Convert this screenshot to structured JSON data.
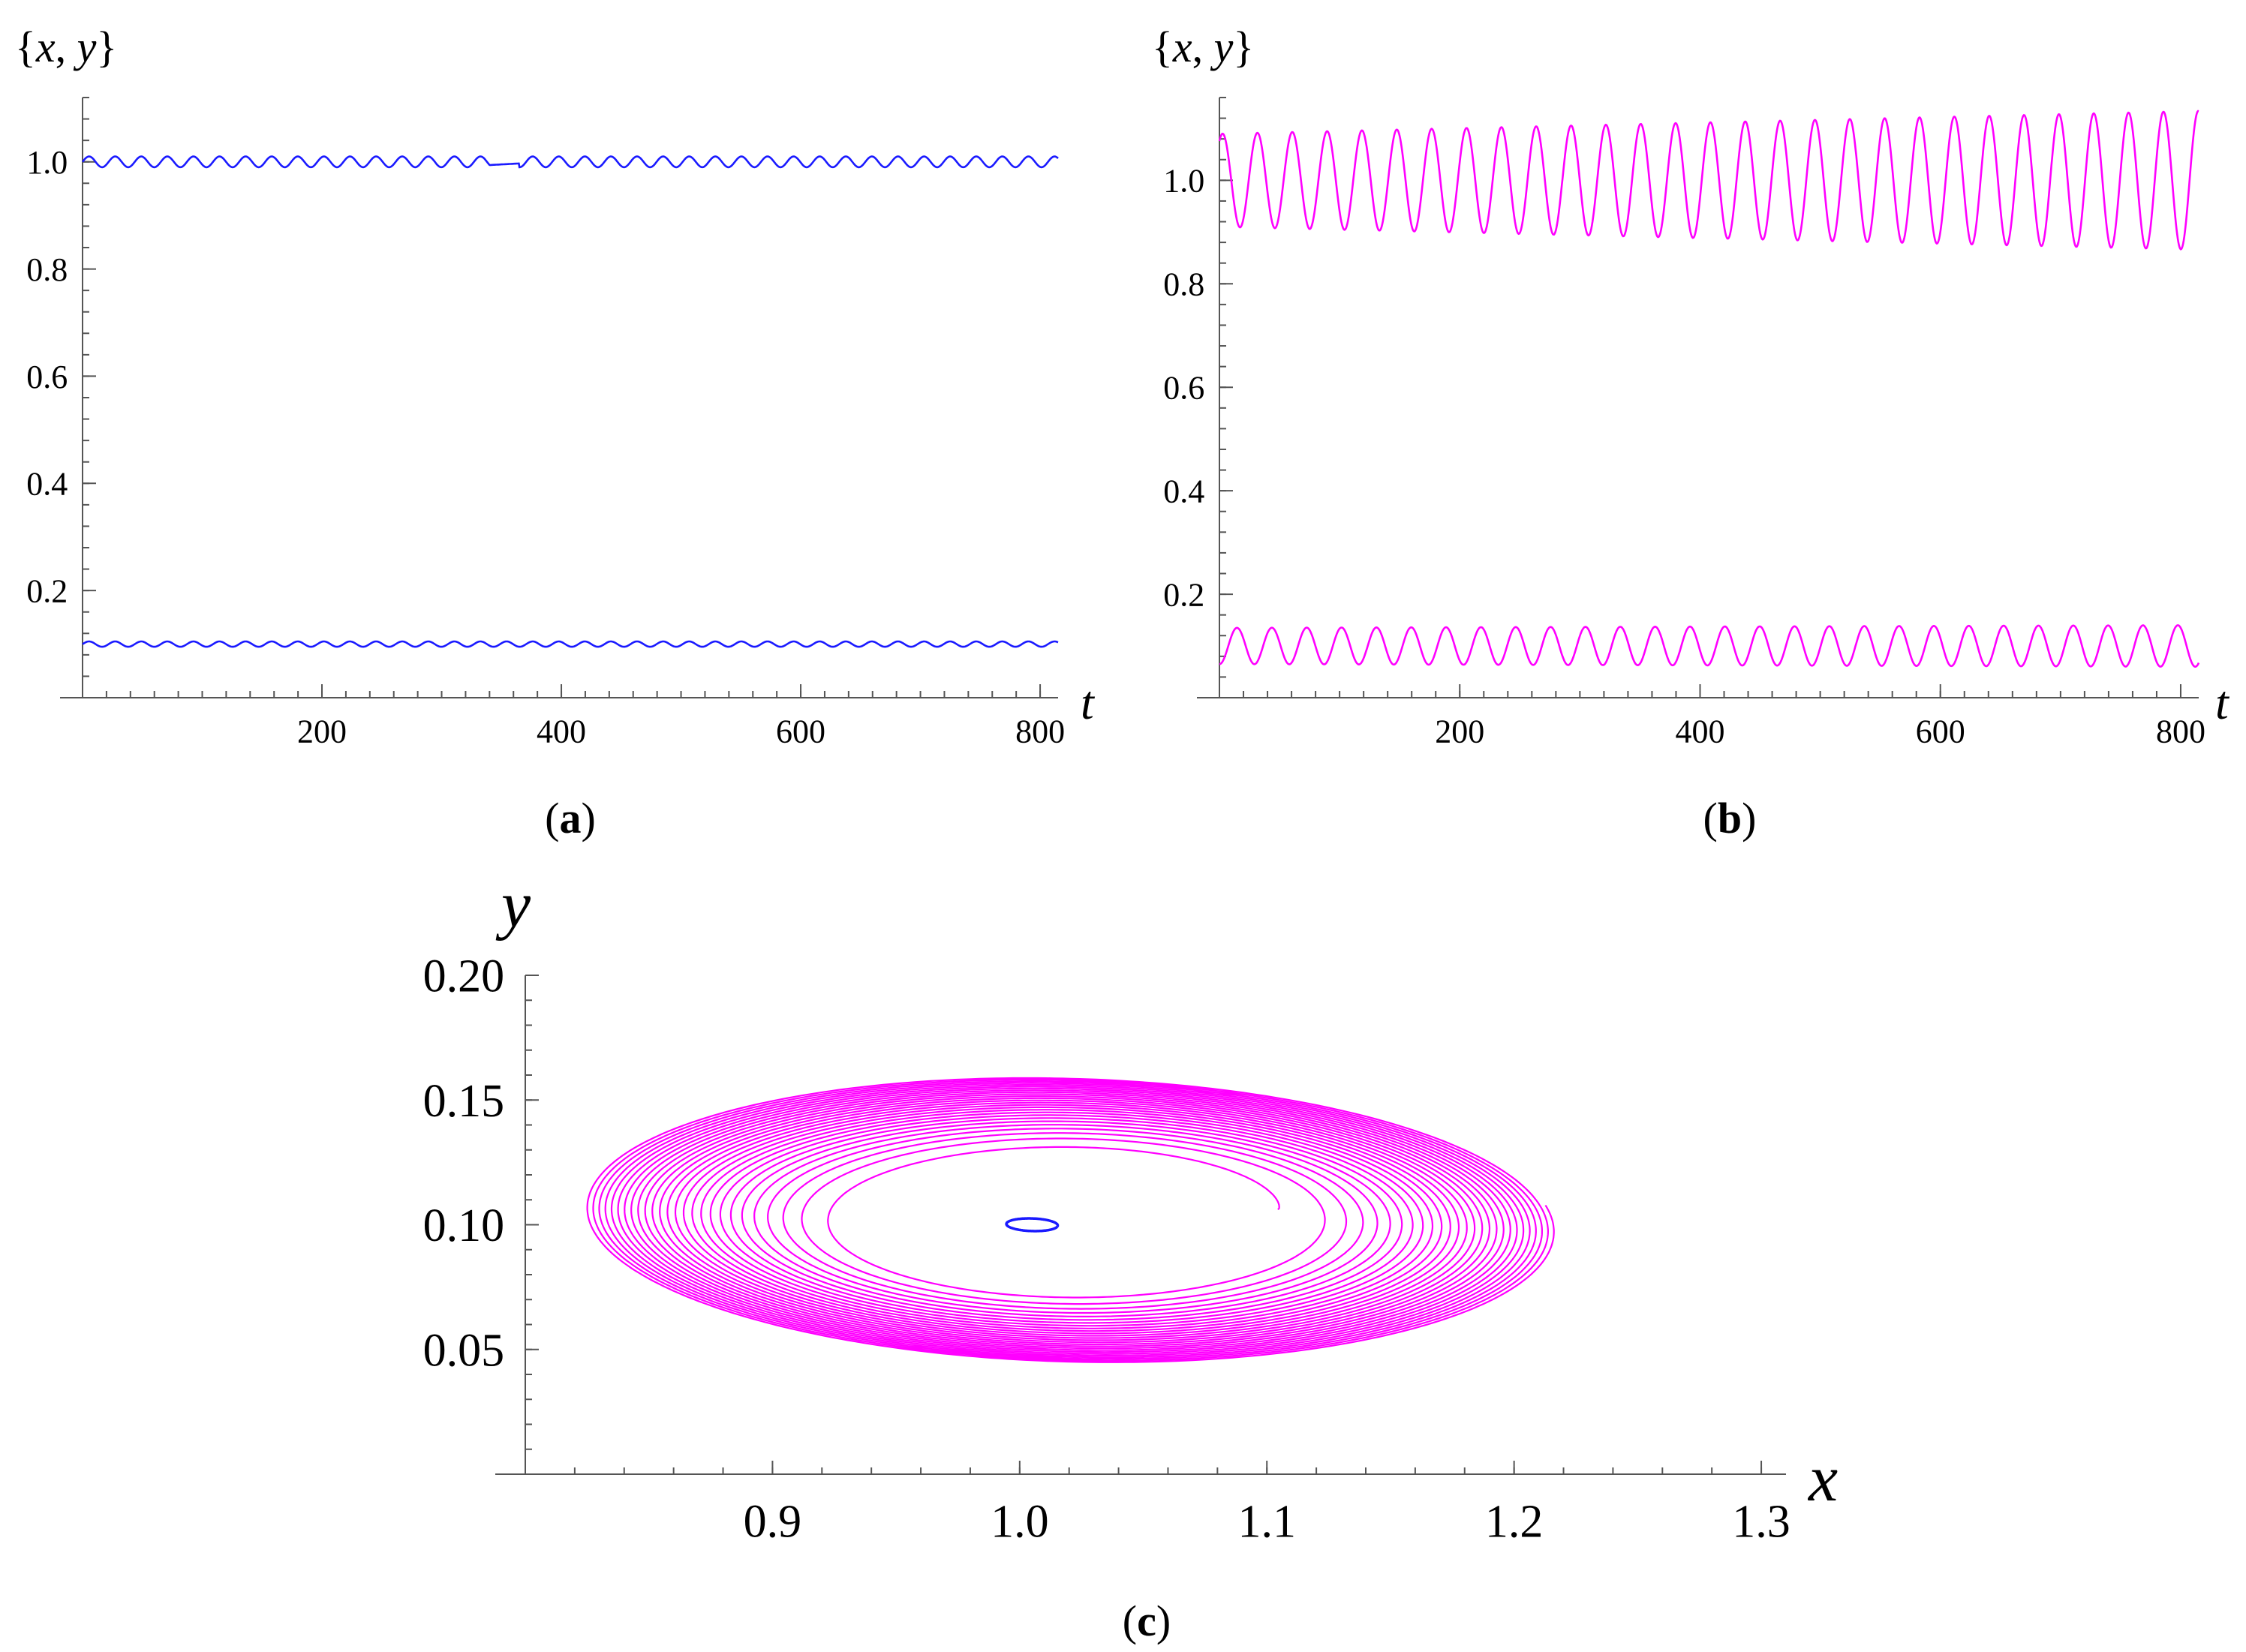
{
  "colors": {
    "blue": "#1a1aff",
    "magenta": "#ff00ff",
    "axis": "#555555"
  },
  "chart_data": [
    {
      "id": "a",
      "type": "line",
      "panel_label": "a",
      "ylabel_open": "{",
      "ylabel_x": "x",
      "ylabel_sep": ", ",
      "ylabel_y": "y",
      "ylabel_close": "}",
      "xlabel": "t",
      "xlim": [
        0,
        815
      ],
      "ylim": [
        0,
        1.12
      ],
      "xticks": [
        200,
        400,
        600,
        800
      ],
      "xtick_labels": [
        "200",
        "400",
        "600",
        "800"
      ],
      "yticks": [
        0.2,
        0.4,
        0.6,
        0.8,
        1.0
      ],
      "ytick_labels": [
        "0.2",
        "0.4",
        "0.6",
        "0.8",
        "1.0"
      ],
      "color": "blue",
      "series": [
        {
          "mean": 1.0,
          "amplitude": 0.01,
          "period": 21.8,
          "amp_growth": 0,
          "t_range": [
            0,
            815
          ],
          "gap": [
            340,
            365
          ]
        },
        {
          "mean": 0.1,
          "amplitude": 0.005,
          "period": 21.8,
          "amp_growth": 0,
          "t_range": [
            0,
            815
          ]
        }
      ]
    },
    {
      "id": "b",
      "type": "line",
      "panel_label": "b",
      "ylabel_open": "{",
      "ylabel_x": "x",
      "ylabel_sep": ", ",
      "ylabel_y": "y",
      "ylabel_close": "}",
      "xlabel": "t",
      "xlim": [
        0,
        815
      ],
      "ylim": [
        0,
        1.16
      ],
      "xticks": [
        200,
        400,
        600,
        800
      ],
      "xtick_labels": [
        "200",
        "400",
        "600",
        "800"
      ],
      "yticks": [
        0.2,
        0.4,
        0.6,
        0.8,
        1.0
      ],
      "ytick_labels": [
        "0.2",
        "0.4",
        "0.6",
        "0.8",
        "1.0"
      ],
      "color": "magenta",
      "series": [
        {
          "mean": 1.0,
          "amplitude": 0.09,
          "period": 29.0,
          "amp_growth": 0.06,
          "t_range": [
            0,
            815
          ],
          "phase": 1.0
        },
        {
          "mean": 0.1,
          "amplitude": 0.035,
          "period": 29.0,
          "amp_growth": 0.018,
          "t_range": [
            0,
            815
          ],
          "phase": -1.6
        }
      ]
    },
    {
      "id": "c",
      "type": "line",
      "panel_label": "c",
      "xlabel": "x",
      "ylabel": "y",
      "xlim": [
        0.8,
        1.31
      ],
      "ylim": [
        0.0,
        0.2
      ],
      "xticks": [
        0.9,
        1.0,
        1.1,
        1.2,
        1.3
      ],
      "xtick_labels": [
        "0.9",
        "1.0",
        "1.1",
        "1.2",
        "1.3"
      ],
      "yticks": [
        0.05,
        0.1,
        0.15,
        0.2
      ],
      "ytick_labels": [
        "0.05",
        "0.10",
        "0.15",
        "0.20"
      ],
      "series": [
        {
          "color": "magenta",
          "kind": "spiral",
          "center": [
            1.02,
            0.102
          ],
          "inner_radii": [
            0.085,
            0.027
          ],
          "outer_radii": [
            0.2,
            0.056
          ],
          "tilt_deg": -26,
          "loops": 26
        },
        {
          "color": "blue",
          "kind": "ellipse",
          "center": [
            1.005,
            0.1
          ],
          "radii": [
            0.0105,
            0.0025
          ],
          "tilt_deg": -13
        }
      ]
    }
  ]
}
